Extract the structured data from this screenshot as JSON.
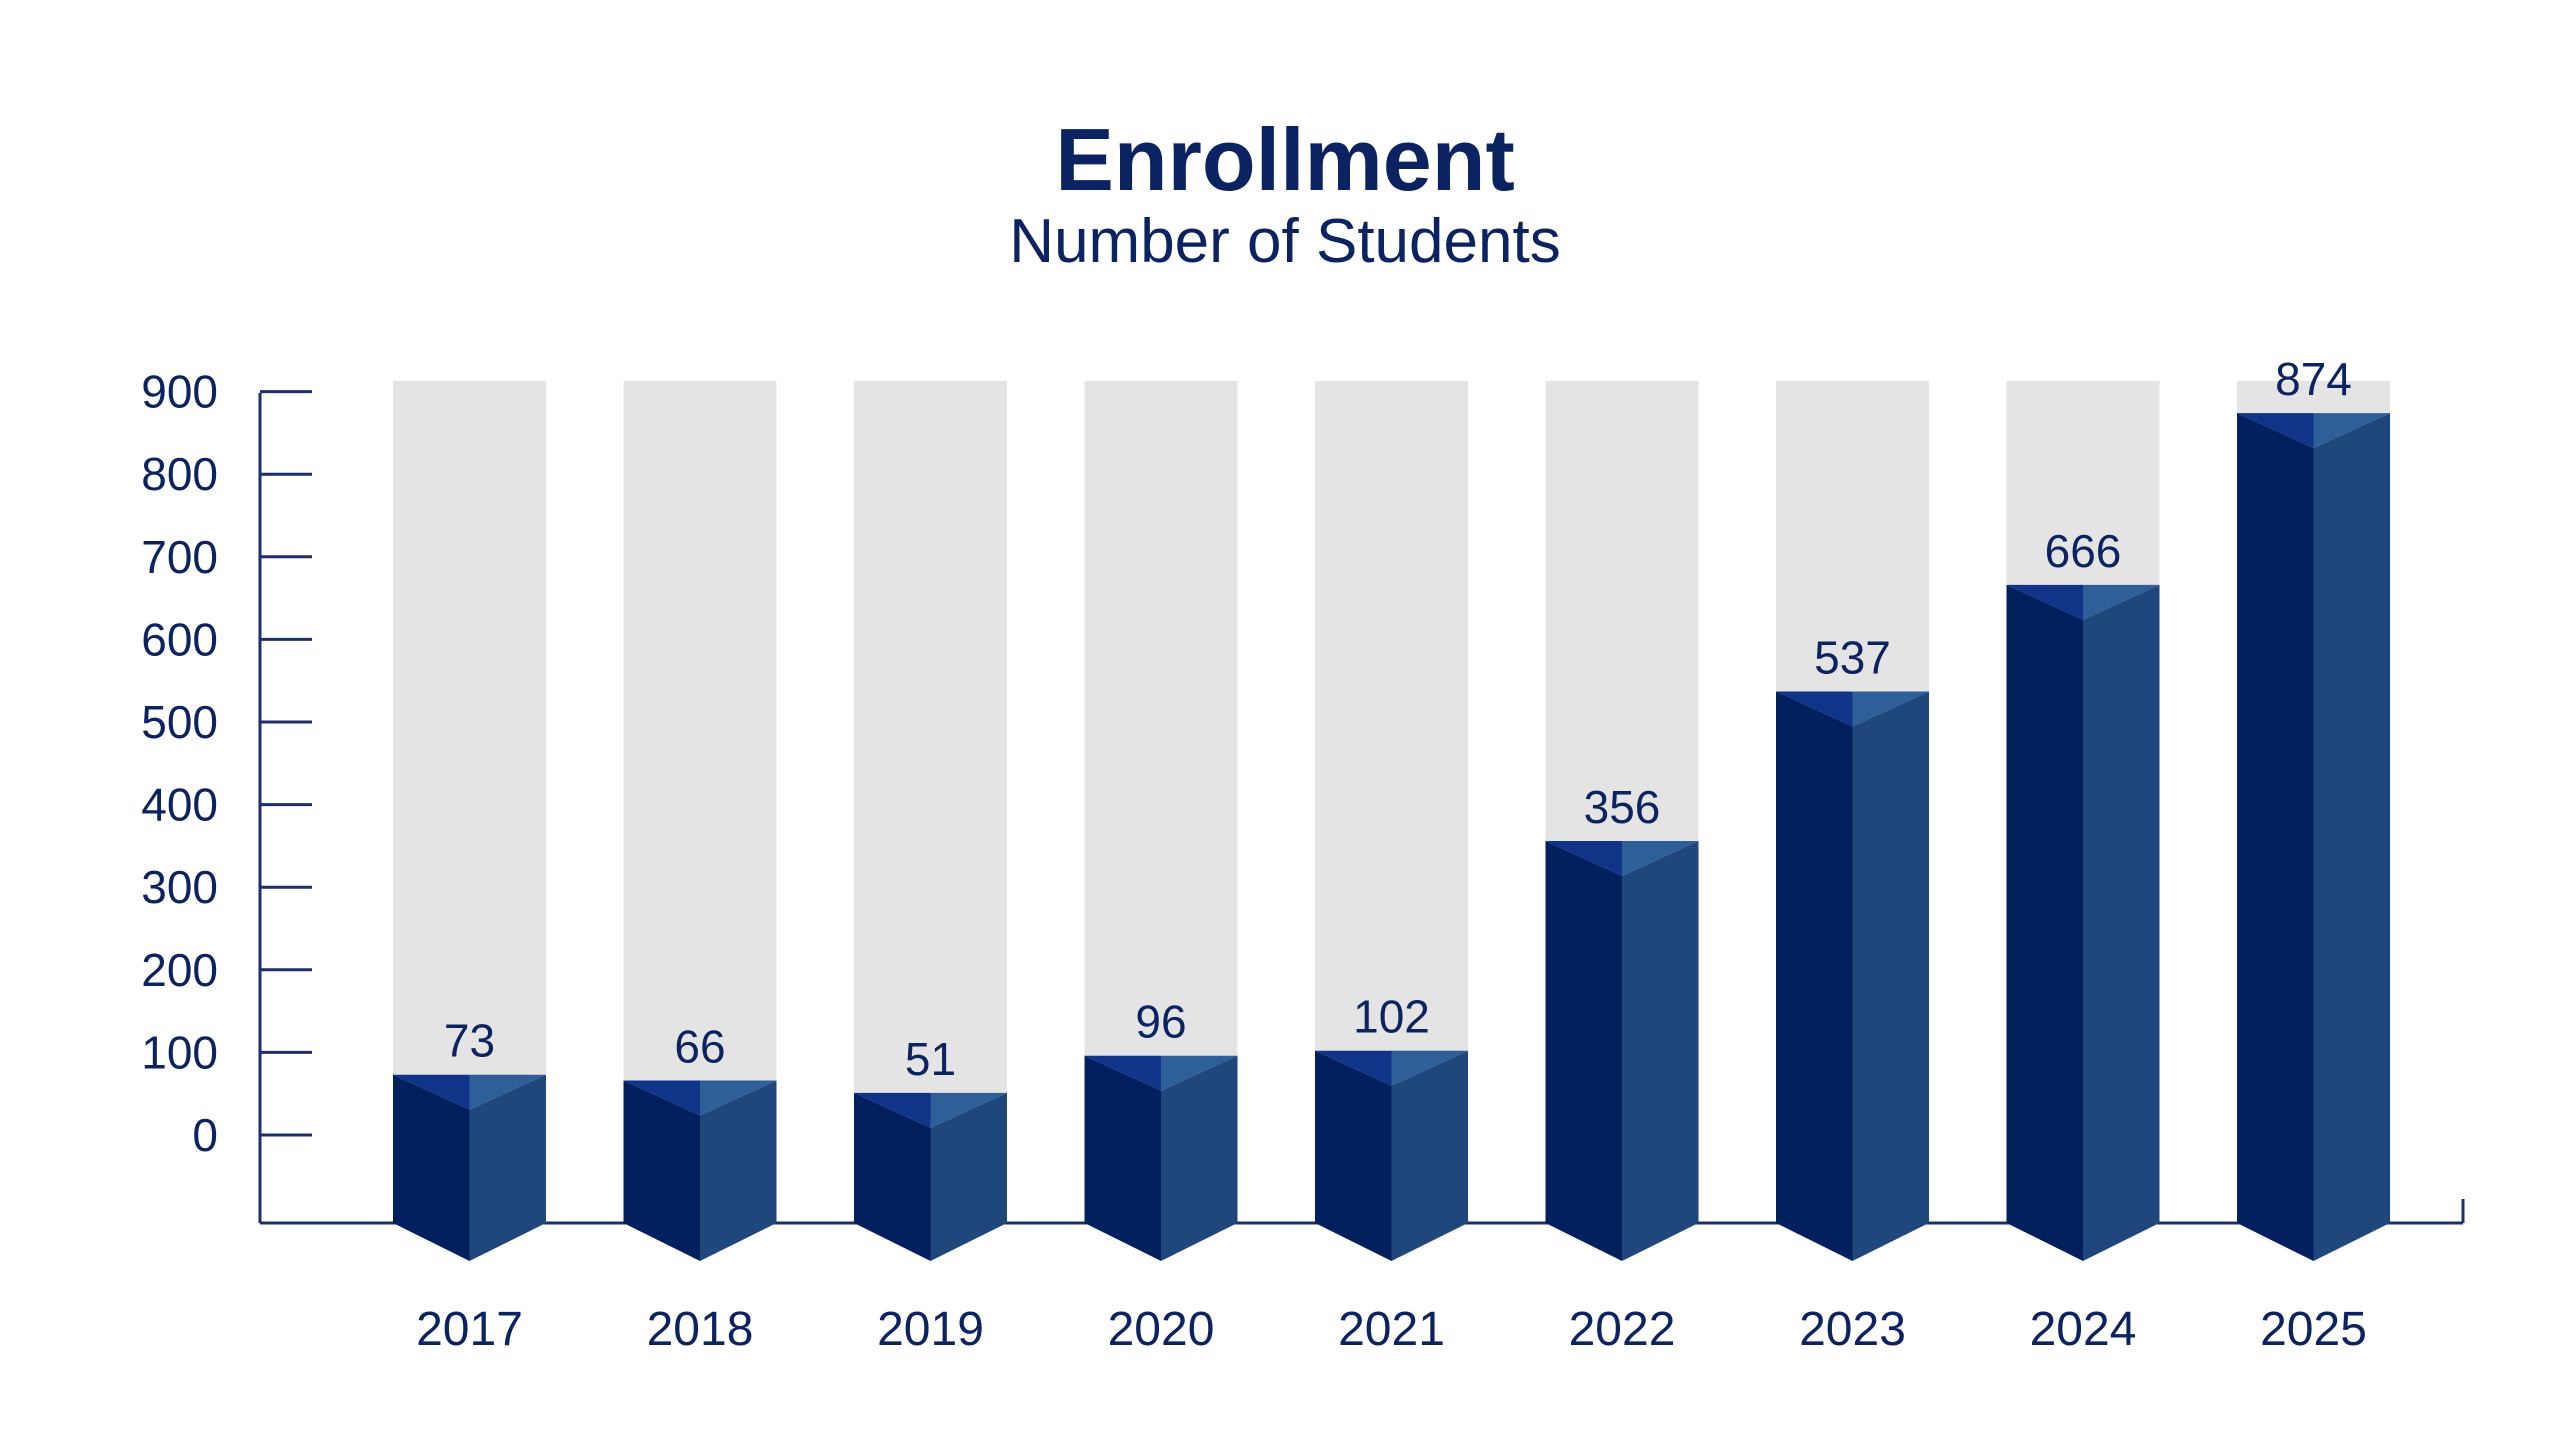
{
  "chart_data": {
    "type": "bar",
    "title": "Enrollment",
    "subtitle": "Number of Students",
    "categories": [
      "2017",
      "2018",
      "2019",
      "2020",
      "2021",
      "2022",
      "2023",
      "2024",
      "2025"
    ],
    "values": [
      73,
      66,
      51,
      96,
      102,
      356,
      537,
      666,
      874
    ],
    "value_labels": [
      "73",
      "66",
      "51",
      "96",
      "102",
      "356",
      "537",
      "666",
      "874"
    ],
    "y_ticks": [
      "0",
      "100",
      "200",
      "300",
      "400",
      "500",
      "600",
      "700",
      "800",
      "900"
    ],
    "ylim": [
      0,
      900
    ],
    "grid": false,
    "legend": "none"
  },
  "colors": {
    "title": "#0b2360",
    "axis": "#1c2f6b",
    "bar_front": "#01205d",
    "bar_side": "#1f477c",
    "bar_top_left": "#0f3488",
    "bar_top_right": "#2f5f99",
    "track": "#e4e4e4"
  }
}
